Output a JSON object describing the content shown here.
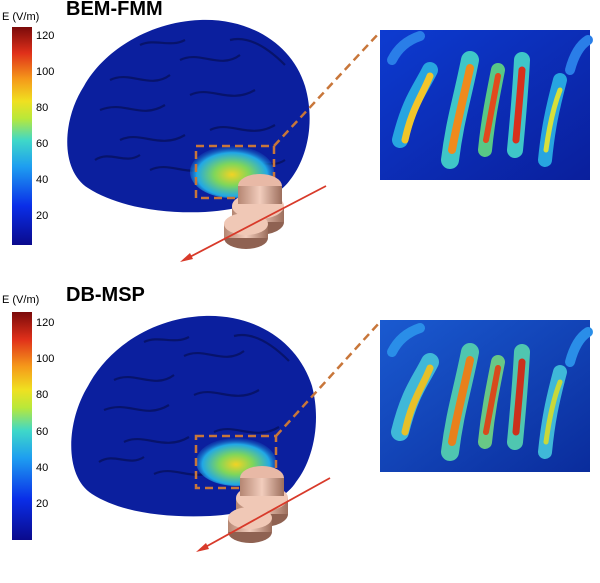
{
  "panels": [
    {
      "title": "BEM-FMM",
      "colorbar": {
        "unit_label": "E (V/m)",
        "ticks": [
          "120",
          "100",
          "80",
          "60",
          "40",
          "20"
        ]
      }
    },
    {
      "title": "DB-MSP",
      "colorbar": {
        "unit_label": "E (V/m)",
        "ticks": [
          "120",
          "100",
          "80",
          "60",
          "40",
          "20"
        ]
      }
    }
  ],
  "colors": {
    "brain_base": "#0b1f9e",
    "brain_dark": "#071263",
    "roi_box": "#c8763a",
    "arrow": "#d83a2a",
    "coil": "#e4b4a0"
  }
}
